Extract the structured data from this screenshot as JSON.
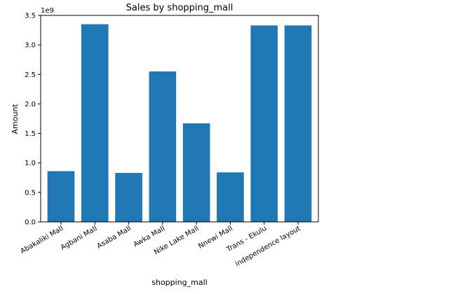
{
  "chart_data": {
    "type": "bar",
    "title": "Sales by shopping_mall",
    "xlabel": "shopping_mall",
    "ylabel": "Amount",
    "y_offset_label": "1e9",
    "categories": [
      "Abakaliki Mall",
      "Agbani Mall",
      "Asaba Mall",
      "Awka Mall",
      "Nike Lake Mall",
      "Nnewi Mall",
      "Trans - Ekulu",
      "independence layout"
    ],
    "values": [
      0.86,
      3.35,
      0.83,
      2.55,
      1.67,
      0.84,
      3.33,
      3.33
    ],
    "ylim": [
      0,
      3.5
    ],
    "yticks": [
      0.0,
      0.5,
      1.0,
      1.5,
      2.0,
      2.5,
      3.0,
      3.5
    ],
    "ytick_labels": [
      "0.0",
      "0.5",
      "1.0",
      "1.5",
      "2.0",
      "2.5",
      "3.0",
      "3.5"
    ],
    "bar_color": "#1f77b4",
    "grid": false,
    "legend": "none"
  }
}
